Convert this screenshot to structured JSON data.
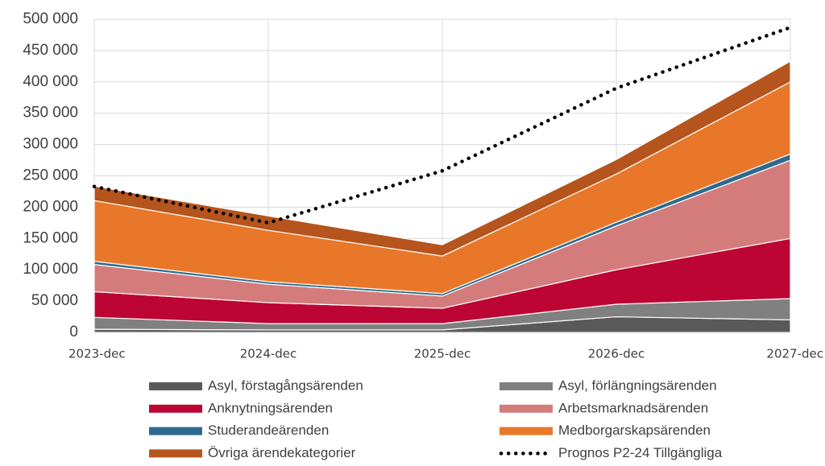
{
  "chart_data": {
    "type": "area",
    "categories": [
      "2023-dec",
      "2024-dec",
      "2025-dec",
      "2026-dec",
      "2027-dec"
    ],
    "ylim": [
      0,
      500000
    ],
    "yticks": [
      {
        "value": 0,
        "label": "0"
      },
      {
        "value": 50000,
        "label": "50 000"
      },
      {
        "value": 100000,
        "label": "100 000"
      },
      {
        "value": 150000,
        "label": "150 000"
      },
      {
        "value": 200000,
        "label": "200 000"
      },
      {
        "value": 250000,
        "label": "250 000"
      },
      {
        "value": 300000,
        "label": "300 000"
      },
      {
        "value": 350000,
        "label": "350 000"
      },
      {
        "value": 400000,
        "label": "400 000"
      },
      {
        "value": 450000,
        "label": "450 000"
      },
      {
        "value": 500000,
        "label": "500 000"
      }
    ],
    "grid": true,
    "series": [
      {
        "name": "Asyl, förstagångsärenden",
        "color": "#595959",
        "values": [
          5000,
          4000,
          4000,
          25000,
          20000
        ]
      },
      {
        "name": "Asyl, förlängningsärenden",
        "color": "#808080",
        "values": [
          19000,
          10000,
          10000,
          20000,
          34000
        ]
      },
      {
        "name": "Anknytningsärenden",
        "color": "#bc0533",
        "values": [
          41000,
          33500,
          24500,
          55000,
          96000
        ]
      },
      {
        "name": "Arbetsmarknadsärenden",
        "color": "#d47b7b",
        "values": [
          43500,
          29500,
          19500,
          70000,
          125000
        ]
      },
      {
        "name": "Studerandeärenden",
        "color": "#2e6a8e",
        "values": [
          5000,
          4000,
          4000,
          6000,
          10000
        ]
      },
      {
        "name": "Medborgarskapsärenden",
        "color": "#e8772a",
        "values": [
          97000,
          82000,
          60000,
          77000,
          115000
        ]
      },
      {
        "name": "Övriga ärendekategorier",
        "color": "#b5541c",
        "values": [
          23000,
          23000,
          18000,
          23000,
          33000
        ]
      },
      {
        "name": "Prognos P2-24 Tillgängliga",
        "color": "#000000",
        "type": "line",
        "dash": "dotted",
        "values": [
          233000,
          175000,
          258000,
          390000,
          487000
        ]
      }
    ]
  }
}
